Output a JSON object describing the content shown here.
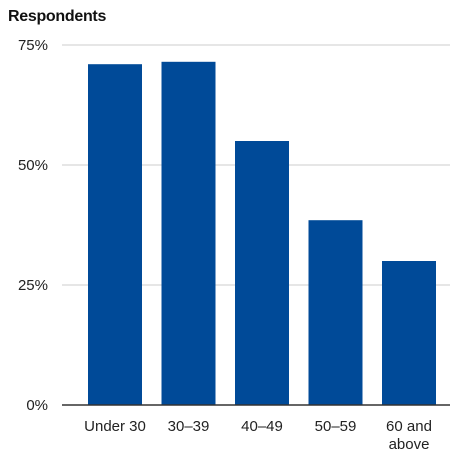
{
  "chart_data": {
    "type": "bar",
    "title": "Respondents",
    "xlabel": "",
    "ylabel": "",
    "categories": [
      "Under 30",
      "30–39",
      "40–49",
      "50–59",
      "60 and above"
    ],
    "values": [
      71,
      71.5,
      55,
      38.5,
      30
    ],
    "ylim": [
      0,
      75
    ],
    "y_ticks": [
      {
        "value": 75,
        "label": "75%"
      },
      {
        "value": 50,
        "label": "50%"
      },
      {
        "value": 25,
        "label": "25%"
      },
      {
        "value": 0,
        "label": "0%"
      }
    ],
    "grid": true,
    "bar_color": "#004a98",
    "grid_color": "#cccccc"
  }
}
